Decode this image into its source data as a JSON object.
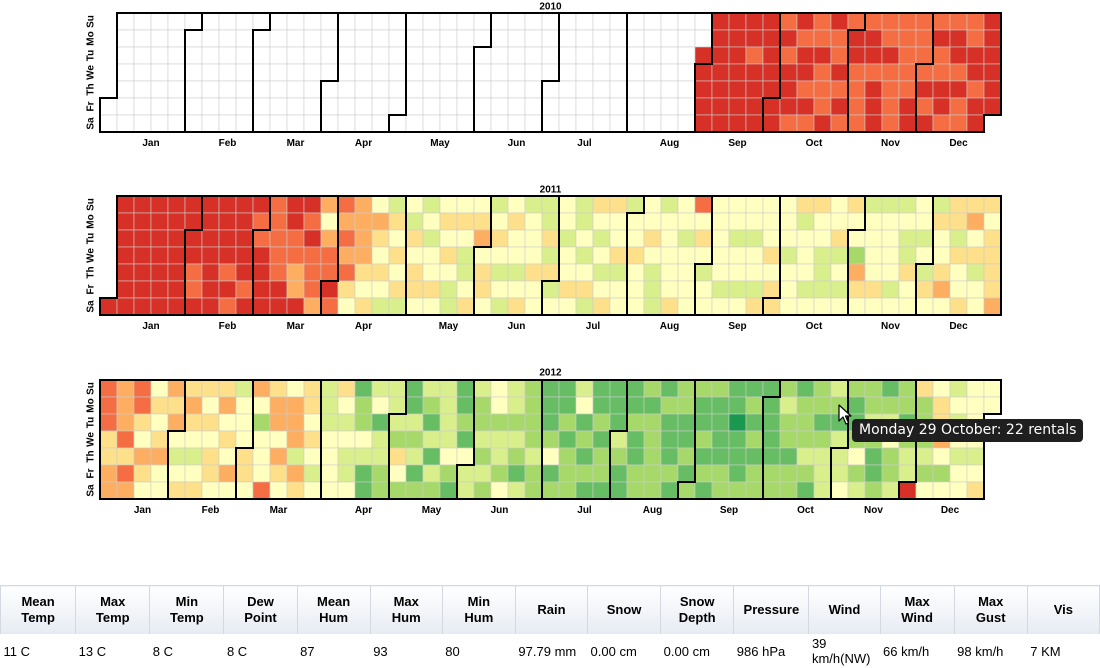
{
  "chart_data": {
    "type": "heatmap",
    "description_free": true,
    "years": [
      "2010",
      "2011",
      "2012"
    ],
    "months": [
      "Jan",
      "Feb",
      "Mar",
      "Apr",
      "May",
      "Jun",
      "Jul",
      "Aug",
      "Sep",
      "Oct",
      "Nov",
      "Dec"
    ],
    "weekdays": [
      "Su",
      "Mo",
      "Tu",
      "We",
      "Th",
      "Fr",
      "Sa"
    ],
    "data_start": "2010-08-31",
    "color_scale": [
      "#006837",
      "#1a9850",
      "#66bd63",
      "#a6d96a",
      "#d9ef8b",
      "#ffffbf",
      "#fee08b",
      "#fdae61",
      "#f46d43",
      "#d73027",
      "#a50026"
    ],
    "daily_levels": {
      "2010": "9999999999999999999998999999999998989998989989888988899889898899888889989998898888888889988889898988998899898888998999999999",
      "2011": "999999999999999999999999999999999889999999999998989999989988999988888999988779989888775788988787865777765657656544656564546566545455655656544565445656756654565454565545645556554464645554556544545646545456655645545565555565444455555655455558565455555554555455455545546555656655545556455545655444555645456553765455556545555454544655554546546556756646556675645565666676766796878777878888888",
      "2012": "8886677777868788657655656755767545667654566565665675657545556657535558677576557774766656545444555565454452335422452443344436532243423432424344445322232544433434355344354434324333343322235232232333452323222323322224322223223332333332322232332232332232323222233221222323232332222233343323323334323323444432444532235343343223234533433234496333435566753545454555555456554543656545665644566548767"
    }
  },
  "tooltip": {
    "text": "Monday 29 October: 22 rentals"
  },
  "weather": {
    "headers": [
      [
        "Mean",
        "Temp"
      ],
      [
        "Max",
        "Temp"
      ],
      [
        "Min",
        "Temp"
      ],
      [
        "Dew",
        "Point"
      ],
      [
        "Mean",
        "Hum"
      ],
      [
        "Max",
        "Hum"
      ],
      [
        "Min",
        "Hum"
      ],
      [
        "Rain"
      ],
      [
        "Snow"
      ],
      [
        "Snow",
        "Depth"
      ],
      [
        "Pressure"
      ],
      [
        "Wind"
      ],
      [
        "Max",
        "Wind"
      ],
      [
        "Max",
        "Gust"
      ],
      [
        "Vis"
      ]
    ],
    "values": [
      "11 C",
      "13 C",
      "8 C",
      "8 C",
      "87",
      "93",
      "80",
      "97.79 mm",
      "0.00 cm",
      "0.00 cm",
      "986 hPa",
      "39 km/h(NW)",
      "66 km/h",
      "98 km/h",
      "7 KM"
    ],
    "colors": {
      "header_top": "#ffffff",
      "header_bottom": "#e6ebf3",
      "border": "#d3d9e3"
    }
  }
}
